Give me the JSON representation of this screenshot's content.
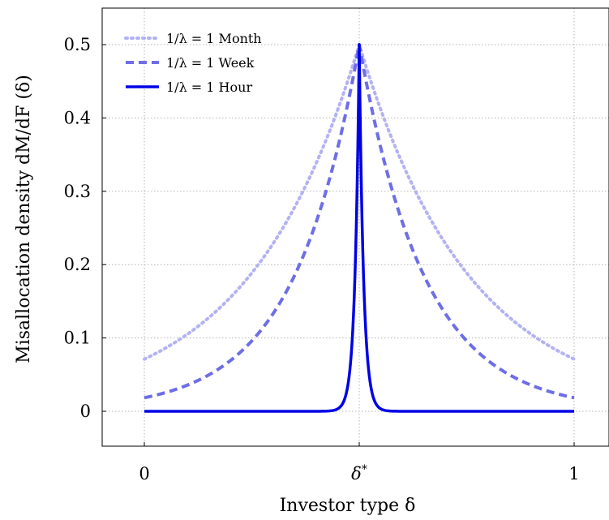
{
  "chart_data": {
    "type": "line",
    "xlabel": "Investor type δ",
    "ylabel": "Misallocation density dM/dF (δ)",
    "x_ticks": [
      {
        "value": 0,
        "label": "0"
      },
      {
        "value": 0.5,
        "label": "δ*"
      },
      {
        "value": 1,
        "label": "1"
      }
    ],
    "y_ticks": [
      {
        "value": 0,
        "label": "0"
      },
      {
        "value": 0.1,
        "label": "0.1"
      },
      {
        "value": 0.2,
        "label": "0.2"
      },
      {
        "value": 0.3,
        "label": "0.3"
      },
      {
        "value": 0.4,
        "label": "0.4"
      },
      {
        "value": 0.5,
        "label": "0.5"
      }
    ],
    "xlim": [
      -0.1,
      1.08
    ],
    "ylim": [
      -0.05,
      0.55
    ],
    "grid": true,
    "legend_position": "top-left",
    "series": [
      {
        "name": "1/λ = 1 Month",
        "style": "dotted",
        "color": "#b3b3f2",
        "peak": 0.5,
        "decay": 3.9,
        "width": 4
      },
      {
        "name": "1/λ = 1 Week",
        "style": "dashed",
        "color": "#6e6ee6",
        "peak": 0.5,
        "decay": 6.6,
        "width": 4
      },
      {
        "name": "1/λ = 1 Hour",
        "style": "solid",
        "color": "#0000e6",
        "peak": 0.5,
        "decay": 100,
        "width": 3.5
      }
    ]
  }
}
